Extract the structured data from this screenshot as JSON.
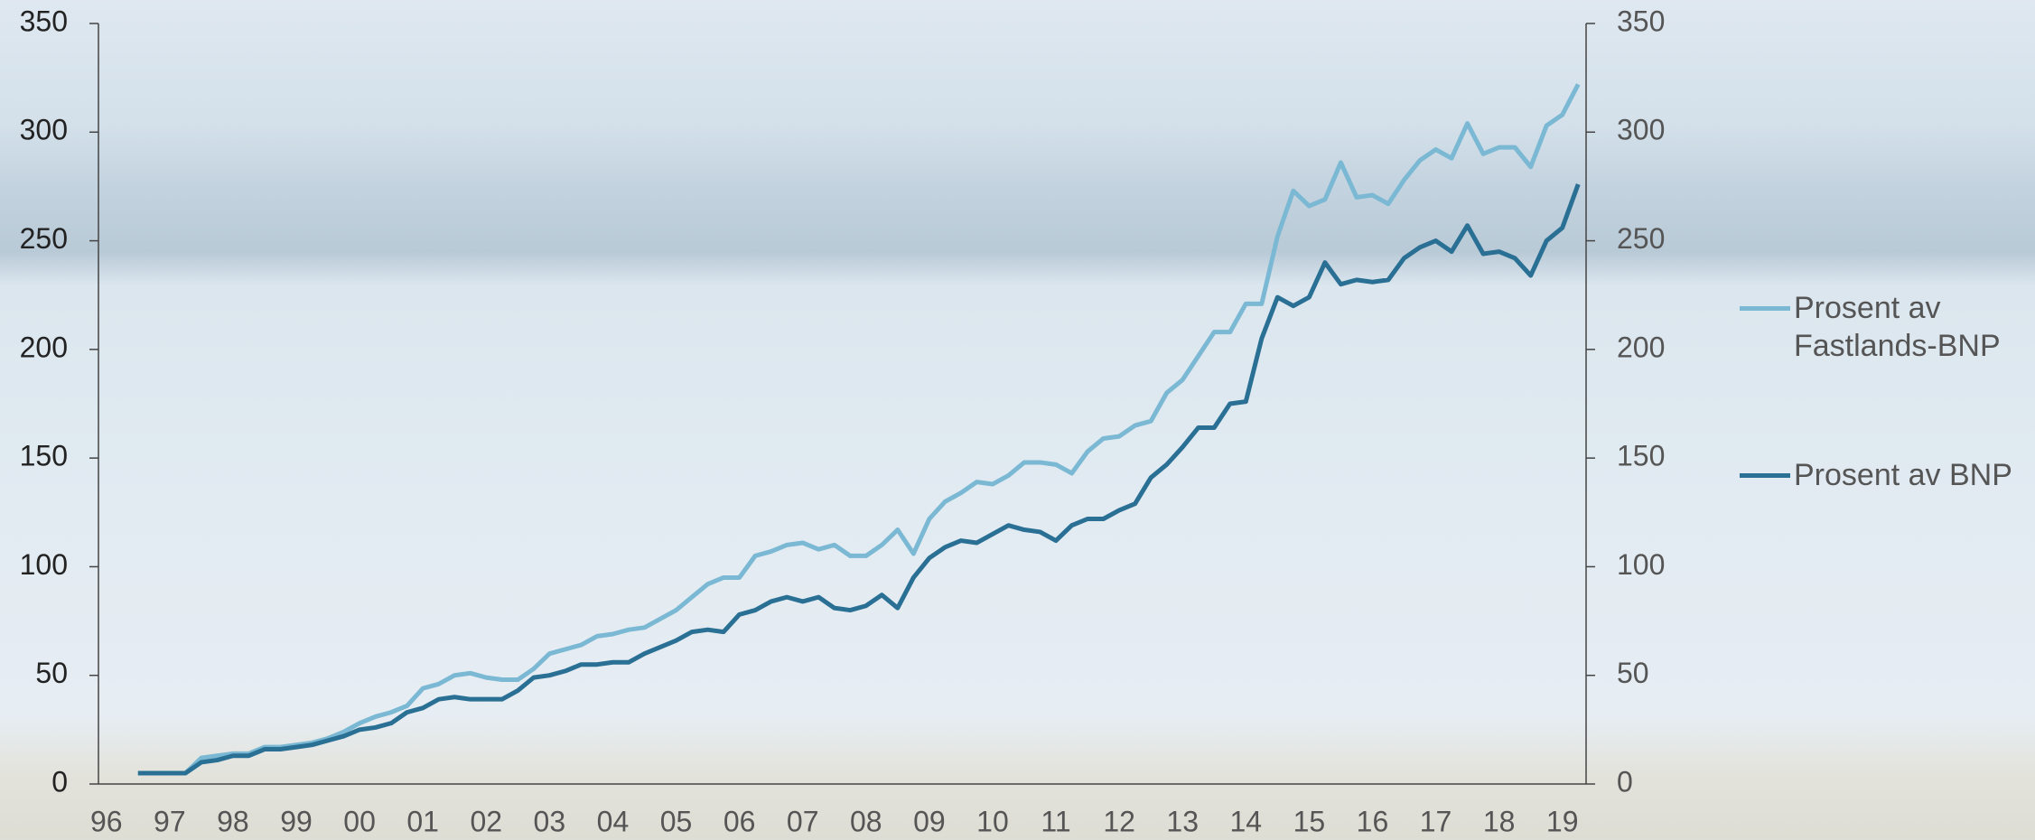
{
  "chart_data": {
    "type": "line",
    "categories": [
      "96",
      null,
      null,
      null,
      "97",
      null,
      null,
      null,
      "98",
      null,
      null,
      null,
      "99",
      null,
      null,
      null,
      "00",
      null,
      null,
      null,
      "01",
      null,
      null,
      null,
      "02",
      null,
      null,
      null,
      "03",
      null,
      null,
      null,
      "04",
      null,
      null,
      null,
      "05",
      null,
      null,
      null,
      "06",
      null,
      null,
      null,
      "07",
      null,
      null,
      null,
      "08",
      null,
      null,
      null,
      "09",
      null,
      null,
      null,
      "10",
      null,
      null,
      null,
      "11",
      null,
      null,
      null,
      "12",
      null,
      null,
      null,
      "13",
      null,
      null,
      null,
      "14",
      null,
      null,
      null,
      "15",
      null,
      null,
      null,
      "16",
      null,
      null,
      null,
      "17",
      null,
      null,
      null,
      "18",
      null,
      null,
      null,
      "19",
      null
    ],
    "series": [
      {
        "name": "Prosent av Fastlands-BNP",
        "color": "#7ab8d3",
        "values": [
          null,
          null,
          5,
          5,
          5,
          5,
          12,
          13,
          14,
          14,
          17,
          17,
          18,
          19,
          21,
          24,
          28,
          31,
          33,
          36,
          44,
          46,
          50,
          51,
          49,
          48,
          48,
          53,
          60,
          62,
          64,
          68,
          69,
          71,
          72,
          76,
          80,
          86,
          92,
          95,
          95,
          105,
          107,
          110,
          111,
          108,
          110,
          105,
          105,
          110,
          117,
          106,
          122,
          130,
          134,
          139,
          138,
          142,
          148,
          148,
          147,
          143,
          153,
          159,
          160,
          165,
          167,
          180,
          186,
          197,
          208,
          208,
          221,
          221,
          252,
          273,
          266,
          269,
          286,
          270,
          271,
          267,
          278,
          287,
          292,
          288,
          304,
          290,
          293,
          293,
          284,
          303,
          308,
          322
        ]
      },
      {
        "name": "Prosent av BNP",
        "color": "#2a6f94",
        "values": [
          null,
          null,
          5,
          5,
          5,
          5,
          10,
          11,
          13,
          13,
          16,
          16,
          17,
          18,
          20,
          22,
          25,
          26,
          28,
          33,
          35,
          39,
          40,
          39,
          39,
          39,
          43,
          49,
          50,
          52,
          55,
          55,
          56,
          56,
          60,
          63,
          66,
          70,
          71,
          70,
          78,
          80,
          84,
          86,
          84,
          86,
          81,
          80,
          82,
          87,
          81,
          95,
          104,
          109,
          112,
          111,
          115,
          119,
          117,
          116,
          112,
          119,
          122,
          122,
          126,
          129,
          141,
          147,
          155,
          164,
          164,
          175,
          176,
          205,
          224,
          220,
          224,
          240,
          230,
          232,
          231,
          232,
          242,
          247,
          250,
          245,
          257,
          244,
          245,
          242,
          234,
          250,
          256,
          276
        ]
      }
    ],
    "ylim": [
      0,
      350
    ],
    "yticks": [
      0,
      50,
      100,
      150,
      200,
      250,
      300,
      350
    ],
    "y2lim": [
      0,
      350
    ],
    "y2ticks": [
      0,
      50,
      100,
      150,
      200,
      250,
      300,
      350
    ]
  }
}
